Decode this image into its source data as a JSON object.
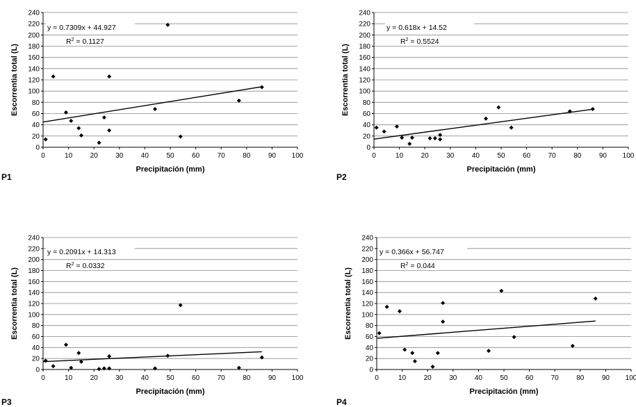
{
  "chart_data": [
    {
      "type": "scatter",
      "panel_label": "P1",
      "xlabel": "Precipitación (mm)",
      "ylabel": "Escorrentia total (L)",
      "xlim": [
        0,
        100
      ],
      "ylim": [
        0,
        240
      ],
      "x_ticks": [
        0,
        10,
        20,
        30,
        40,
        50,
        60,
        70,
        80,
        90,
        100
      ],
      "y_ticks": [
        0,
        20,
        40,
        60,
        80,
        100,
        120,
        140,
        160,
        180,
        200,
        220,
        240
      ],
      "grid": "horizontal",
      "equation": "y = 0.7309x + 44.927",
      "r2_prefix": "R",
      "r2_sup": "2",
      "r2_value": " = 0.1127",
      "trendline": {
        "slope": 0.7309,
        "intercept": 44.927
      },
      "points": [
        [
          1,
          14
        ],
        [
          4,
          126
        ],
        [
          9,
          62
        ],
        [
          11,
          47
        ],
        [
          14,
          34
        ],
        [
          15,
          21
        ],
        [
          22,
          8
        ],
        [
          24,
          53
        ],
        [
          26,
          126
        ],
        [
          26,
          30
        ],
        [
          44,
          68
        ],
        [
          49,
          218
        ],
        [
          54,
          19
        ],
        [
          77,
          83
        ],
        [
          86,
          107
        ]
      ]
    },
    {
      "type": "scatter",
      "panel_label": "P2",
      "xlabel": "Precipitación (mm)",
      "ylabel": "Escorrentia total (L)",
      "xlim": [
        0,
        100
      ],
      "ylim": [
        0,
        240
      ],
      "x_ticks": [
        0,
        10,
        20,
        30,
        40,
        50,
        60,
        70,
        80,
        90,
        100
      ],
      "y_ticks": [
        0,
        20,
        40,
        60,
        80,
        100,
        120,
        140,
        160,
        180,
        200,
        220,
        240
      ],
      "grid": "horizontal",
      "equation": "y = 0.618x + 14.52",
      "r2_prefix": "R",
      "r2_sup": "2",
      "r2_value": " = 0.5524",
      "trendline": {
        "slope": 0.618,
        "intercept": 14.52
      },
      "points": [
        [
          1,
          35
        ],
        [
          4,
          28
        ],
        [
          9,
          37
        ],
        [
          11,
          17
        ],
        [
          14,
          6
        ],
        [
          15,
          17
        ],
        [
          22,
          16
        ],
        [
          24,
          16
        ],
        [
          26,
          22
        ],
        [
          26,
          14
        ],
        [
          44,
          51
        ],
        [
          49,
          71
        ],
        [
          54,
          35
        ],
        [
          77,
          64
        ],
        [
          86,
          68
        ]
      ]
    },
    {
      "type": "scatter",
      "panel_label": "P3",
      "xlabel": "Precipitación (mm)",
      "ylabel": "Escorrentia total (L)",
      "xlim": [
        0,
        100
      ],
      "ylim": [
        0,
        240
      ],
      "x_ticks": [
        0,
        10,
        20,
        30,
        40,
        50,
        60,
        70,
        80,
        90,
        100
      ],
      "y_ticks": [
        0,
        20,
        40,
        60,
        80,
        100,
        120,
        140,
        160,
        180,
        200,
        220,
        240
      ],
      "grid": "horizontal",
      "equation": "y = 0.2091x + 14.313",
      "r2_prefix": "R",
      "r2_sup": "2",
      "r2_value": " = 0.0332",
      "trendline": {
        "slope": 0.2091,
        "intercept": 14.313
      },
      "points": [
        [
          1,
          16
        ],
        [
          4,
          6
        ],
        [
          9,
          45
        ],
        [
          11,
          3
        ],
        [
          14,
          30
        ],
        [
          15,
          14
        ],
        [
          22,
          1
        ],
        [
          24,
          2
        ],
        [
          26,
          2
        ],
        [
          26,
          24
        ],
        [
          44,
          2
        ],
        [
          49,
          25
        ],
        [
          54,
          117
        ],
        [
          77,
          3
        ],
        [
          86,
          22
        ]
      ]
    },
    {
      "type": "scatter",
      "panel_label": "P4",
      "xlabel": "Precipitación (mm)",
      "ylabel": "Escorrentia total (L)",
      "xlim": [
        0,
        100
      ],
      "ylim": [
        0,
        240
      ],
      "x_ticks": [
        0,
        10,
        20,
        30,
        40,
        50,
        60,
        70,
        80,
        90,
        100
      ],
      "y_ticks": [
        0,
        20,
        40,
        60,
        80,
        100,
        120,
        140,
        160,
        180,
        200,
        220,
        240
      ],
      "grid": "horizontal",
      "equation": "y = 0.366x + 56.747",
      "r2_prefix": "R",
      "r2_sup": "2",
      "r2_value": " = 0.044",
      "trendline": {
        "slope": 0.366,
        "intercept": 56.747
      },
      "points": [
        [
          1,
          66
        ],
        [
          4,
          114
        ],
        [
          9,
          106
        ],
        [
          11,
          36
        ],
        [
          14,
          30
        ],
        [
          15,
          15
        ],
        [
          22,
          5
        ],
        [
          24,
          30
        ],
        [
          26,
          87
        ],
        [
          26,
          121
        ],
        [
          44,
          34
        ],
        [
          49,
          143
        ],
        [
          54,
          59
        ],
        [
          77,
          43
        ],
        [
          86,
          129
        ]
      ]
    }
  ]
}
